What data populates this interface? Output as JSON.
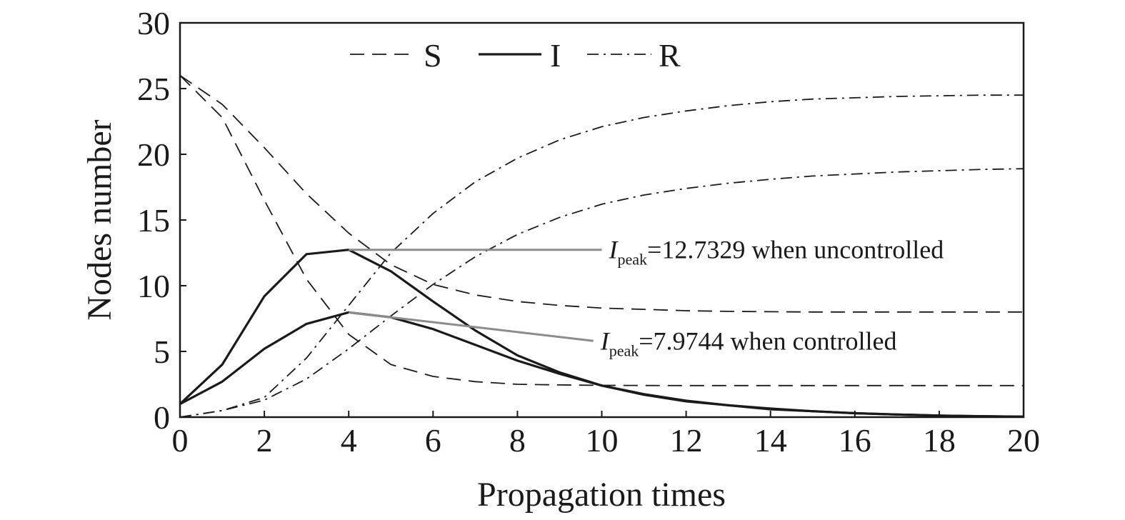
{
  "chart_data": {
    "type": "line",
    "xlabel": "Propagation times",
    "ylabel": "Nodes number",
    "xlim": [
      0,
      20
    ],
    "ylim": [
      0,
      30
    ],
    "xticks": [
      0,
      2,
      4,
      6,
      8,
      10,
      12,
      14,
      16,
      18,
      20
    ],
    "yticks": [
      0,
      5,
      10,
      15,
      20,
      25,
      30
    ],
    "grid": false,
    "legend": {
      "position": "top",
      "entries": [
        {
          "label": "S",
          "style": "dashed"
        },
        {
          "label": "I",
          "style": "solid"
        },
        {
          "label": "R",
          "style": "dashdot"
        }
      ]
    },
    "x": [
      0,
      1,
      2,
      3,
      4,
      5,
      6,
      7,
      8,
      9,
      10,
      11,
      12,
      13,
      14,
      15,
      16,
      17,
      18,
      19,
      20
    ],
    "series": [
      {
        "group": "S",
        "condition": "uncontrolled",
        "style": "dashed",
        "color": "#1a1a1a",
        "values": [
          26,
          22.8,
          16.5,
          10.5,
          6.3,
          4.0,
          3.1,
          2.7,
          2.5,
          2.45,
          2.42,
          2.41,
          2.4,
          2.4,
          2.4,
          2.4,
          2.4,
          2.4,
          2.4,
          2.4,
          2.4
        ]
      },
      {
        "group": "S",
        "condition": "controlled",
        "style": "dashed",
        "color": "#1a1a1a",
        "values": [
          26,
          23.8,
          20.5,
          17.0,
          14.0,
          11.6,
          10.1,
          9.3,
          8.8,
          8.5,
          8.3,
          8.2,
          8.1,
          8.05,
          8.02,
          8.0,
          8.0,
          8.0,
          8.0,
          8.0,
          8.0
        ]
      },
      {
        "group": "I",
        "condition": "uncontrolled",
        "style": "solid",
        "color": "#1a1a1a",
        "values": [
          1,
          4.0,
          9.2,
          12.4,
          12.7329,
          11.1,
          8.8,
          6.6,
          4.7,
          3.4,
          2.4,
          1.7,
          1.2,
          0.9,
          0.6,
          0.45,
          0.3,
          0.2,
          0.12,
          0.07,
          0.03
        ]
      },
      {
        "group": "I",
        "condition": "controlled",
        "style": "solid",
        "color": "#1a1a1a",
        "values": [
          1,
          2.7,
          5.2,
          7.1,
          7.9744,
          7.6,
          6.7,
          5.5,
          4.3,
          3.3,
          2.4,
          1.75,
          1.25,
          0.9,
          0.65,
          0.45,
          0.3,
          0.2,
          0.12,
          0.07,
          0.03
        ]
      },
      {
        "group": "R",
        "condition": "uncontrolled",
        "style": "dashdot",
        "color": "#1a1a1a",
        "values": [
          0,
          0.5,
          1.5,
          4.5,
          8.5,
          12.5,
          15.5,
          17.9,
          19.7,
          21.1,
          22.1,
          22.8,
          23.3,
          23.7,
          24.0,
          24.2,
          24.3,
          24.4,
          24.45,
          24.5,
          24.5
        ]
      },
      {
        "group": "R",
        "condition": "controlled",
        "style": "dashdot",
        "color": "#1a1a1a",
        "values": [
          0,
          0.5,
          1.3,
          2.9,
          5.2,
          7.7,
          10.1,
          12.2,
          13.9,
          15.2,
          16.2,
          16.9,
          17.4,
          17.8,
          18.1,
          18.35,
          18.5,
          18.65,
          18.75,
          18.85,
          18.9
        ]
      }
    ],
    "annotations": [
      {
        "symbol": "I",
        "subscript": "peak",
        "text": "=12.7329 when uncontrolled",
        "x": 4,
        "y": 12.7329,
        "color": "#8c8c8c"
      },
      {
        "symbol": "I",
        "subscript": "peak",
        "text": "=7.9744 when controlled",
        "x": 4,
        "y": 7.9744,
        "color": "#8c8c8c"
      }
    ]
  }
}
